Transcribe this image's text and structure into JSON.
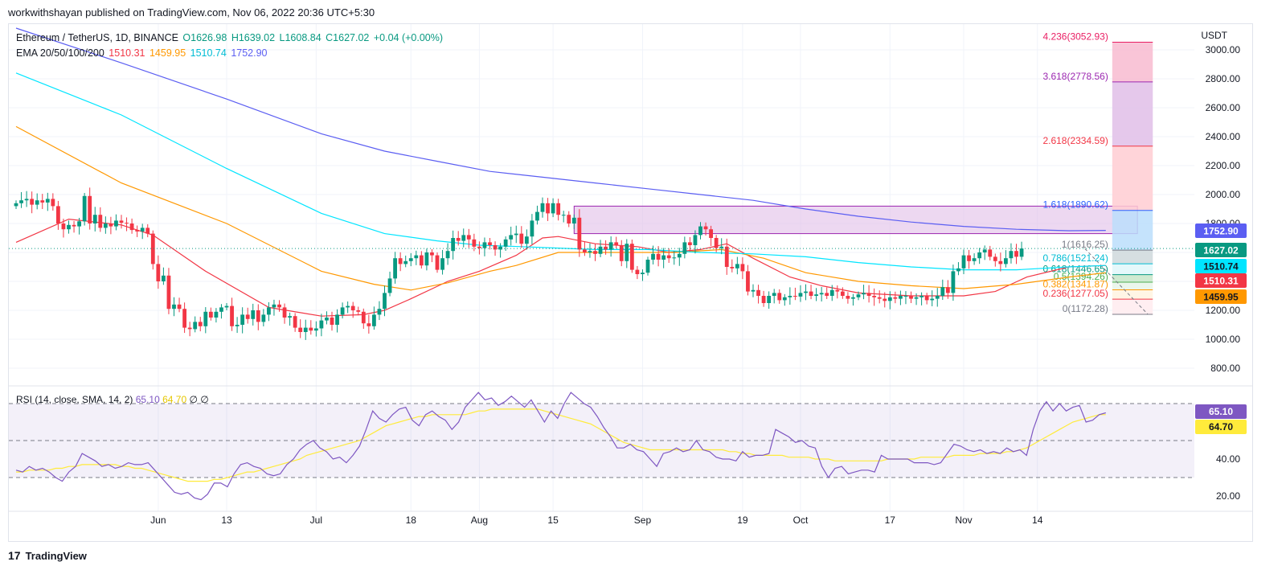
{
  "header": {
    "published_line": "workwithshayan published on TradingView.com, Nov 06, 2022 20:36 UTC+5:30"
  },
  "legend": {
    "symbol": "Ethereum / TetherUS, 1D, BINANCE",
    "open": "O1626.98",
    "high": "H1639.02",
    "low": "L1608.84",
    "close": "C1627.02",
    "change": "+0.04 (+0.00%)",
    "ema_title": "EMA 20/50/100/200",
    "ema_values": [
      "1510.31",
      "1459.95",
      "1510.74",
      "1752.90"
    ]
  },
  "rsi_legend": {
    "title": "RSI (14, close, SMA, 14, 2)",
    "rsi": "65.10",
    "sma": "64.70",
    "extra": "∅ ∅"
  },
  "footer": {
    "brand": "TradingView",
    "logo_text": "17"
  },
  "colors": {
    "up": "#089981",
    "down": "#f23645",
    "ema20": "#f23645",
    "ema50": "#ff9800",
    "ema100": "#00e5ff",
    "ema200": "#5b5ef2",
    "rsi": "#7e57c2",
    "rsi_sma": "#ffeb3b"
  },
  "chart_data": [
    {
      "type": "candlestick",
      "title": "Ethereum / TetherUS, 1D, BINANCE",
      "ylabel": "USDT",
      "ylim": [
        700,
        3200
      ],
      "y_ticks": [
        800,
        1000,
        1200,
        1400,
        1600,
        1800,
        2000,
        2200,
        2400,
        2600,
        2800,
        3000
      ],
      "x_ticks": [
        "Jun",
        "13",
        "Jul",
        "18",
        "Aug",
        "15",
        "Sep",
        "19",
        "Oct",
        "17",
        "Nov",
        "14"
      ],
      "x_tick_days": [
        27,
        40,
        57,
        75,
        88,
        102,
        119,
        138,
        149,
        166,
        180,
        194
      ],
      "days_total": 207,
      "closes": [
        1940,
        1960,
        1970,
        1930,
        1960,
        1945,
        1970,
        1920,
        1800,
        1760,
        1790,
        1780,
        1815,
        1990,
        1800,
        1860,
        1770,
        1800,
        1780,
        1820,
        1805,
        1800,
        1755,
        1745,
        1770,
        1730,
        1520,
        1400,
        1440,
        1210,
        1240,
        1210,
        1080,
        1070,
        1120,
        1090,
        1190,
        1150,
        1190,
        1220,
        1230,
        1090,
        1100,
        1170,
        1140,
        1200,
        1120,
        1170,
        1220,
        1240,
        1220,
        1150,
        1160,
        1080,
        1050,
        1080,
        1060,
        1075,
        1130,
        1150,
        1100,
        1170,
        1220,
        1230,
        1200,
        1190,
        1110,
        1090,
        1170,
        1210,
        1320,
        1420,
        1560,
        1520,
        1540,
        1560,
        1580,
        1510,
        1600,
        1580,
        1480,
        1560,
        1610,
        1700,
        1680,
        1720,
        1690,
        1640,
        1630,
        1670,
        1650,
        1620,
        1640,
        1690,
        1720,
        1730,
        1660,
        1710,
        1820,
        1880,
        1940,
        1870,
        1940,
        1860,
        1860,
        1800,
        1840,
        1620,
        1600,
        1610,
        1590,
        1640,
        1620,
        1670,
        1650,
        1540,
        1660,
        1480,
        1450,
        1460,
        1550,
        1590,
        1550,
        1580,
        1560,
        1565,
        1590,
        1670,
        1650,
        1720,
        1780,
        1760,
        1700,
        1630,
        1640,
        1500,
        1490,
        1520,
        1470,
        1330,
        1340,
        1300,
        1250,
        1300,
        1320,
        1270,
        1290,
        1300,
        1295,
        1320,
        1330,
        1300,
        1310,
        1320,
        1300,
        1340,
        1330,
        1300,
        1280,
        1290,
        1310,
        1320,
        1300,
        1290,
        1280,
        1265,
        1290,
        1280,
        1300,
        1300,
        1280,
        1290,
        1300,
        1270,
        1280,
        1300,
        1360,
        1320,
        1470,
        1490,
        1580,
        1540,
        1560,
        1600,
        1620,
        1570,
        1540,
        1520,
        1560,
        1610,
        1570,
        1627
      ],
      "ema": [
        {
          "name": "EMA 20",
          "last": 1510.31,
          "anchors": [
            [
              0,
              1670
            ],
            [
              10,
              1830
            ],
            [
              20,
              1790
            ],
            [
              26,
              1720
            ],
            [
              36,
              1470
            ],
            [
              48,
              1220
            ],
            [
              58,
              1160
            ],
            [
              66,
              1170
            ],
            [
              70,
              1200
            ],
            [
              75,
              1280
            ],
            [
              82,
              1400
            ],
            [
              88,
              1470
            ],
            [
              95,
              1580
            ],
            [
              100,
              1700
            ],
            [
              103,
              1710
            ],
            [
              110,
              1660
            ],
            [
              118,
              1640
            ],
            [
              124,
              1600
            ],
            [
              130,
              1620
            ],
            [
              135,
              1660
            ],
            [
              140,
              1560
            ],
            [
              147,
              1430
            ],
            [
              153,
              1370
            ],
            [
              160,
              1320
            ],
            [
              170,
              1300
            ],
            [
              180,
              1300
            ],
            [
              186,
              1330
            ],
            [
              192,
              1430
            ],
            [
              200,
              1500
            ],
            [
              207,
              1510
            ]
          ]
        },
        {
          "name": "EMA 50",
          "last": 1459.95,
          "anchors": [
            [
              0,
              2470
            ],
            [
              20,
              2080
            ],
            [
              40,
              1800
            ],
            [
              58,
              1470
            ],
            [
              68,
              1380
            ],
            [
              75,
              1340
            ],
            [
              82,
              1390
            ],
            [
              90,
              1470
            ],
            [
              95,
              1510
            ],
            [
              103,
              1600
            ],
            [
              115,
              1600
            ],
            [
              125,
              1600
            ],
            [
              134,
              1620
            ],
            [
              142,
              1560
            ],
            [
              150,
              1460
            ],
            [
              160,
              1400
            ],
            [
              170,
              1370
            ],
            [
              180,
              1350
            ],
            [
              190,
              1380
            ],
            [
              200,
              1430
            ],
            [
              207,
              1460
            ]
          ]
        },
        {
          "name": "EMA 100",
          "last": 1510.74,
          "anchors": [
            [
              0,
              2840
            ],
            [
              20,
              2550
            ],
            [
              40,
              2180
            ],
            [
              58,
              1870
            ],
            [
              70,
              1730
            ],
            [
              80,
              1680
            ],
            [
              88,
              1650
            ],
            [
              96,
              1640
            ],
            [
              103,
              1630
            ],
            [
              110,
              1620
            ],
            [
              120,
              1620
            ],
            [
              130,
              1600
            ],
            [
              140,
              1590
            ],
            [
              150,
              1570
            ],
            [
              160,
              1530
            ],
            [
              170,
              1500
            ],
            [
              180,
              1480
            ],
            [
              190,
              1480
            ],
            [
              200,
              1500
            ],
            [
              207,
              1510
            ]
          ]
        },
        {
          "name": "EMA 200",
          "last": 1752.9,
          "anchors": [
            [
              0,
              3150
            ],
            [
              20,
              2910
            ],
            [
              40,
              2660
            ],
            [
              58,
              2420
            ],
            [
              70,
              2300
            ],
            [
              80,
              2230
            ],
            [
              90,
              2160
            ],
            [
              100,
              2120
            ],
            [
              110,
              2080
            ],
            [
              120,
              2040
            ],
            [
              130,
              2000
            ],
            [
              140,
              1960
            ],
            [
              150,
              1900
            ],
            [
              160,
              1850
            ],
            [
              170,
              1810
            ],
            [
              180,
              1780
            ],
            [
              190,
              1760
            ],
            [
              200,
              1750
            ],
            [
              207,
              1752
            ]
          ]
        }
      ],
      "price_labels": [
        "1752.90",
        "1627.02",
        "1510.74",
        "1510.31",
        "1459.95"
      ],
      "price_label_values": [
        1752.9,
        1627.02,
        1510.74,
        1510.31,
        1459.95
      ],
      "resistance_zone": [
        1730,
        1920
      ],
      "fib": {
        "day_start": 207,
        "day_end": 215,
        "levels": [
          {
            "label": "4.236(3052.93)",
            "value": 3052.93
          },
          {
            "label": "3.618(2778.56)",
            "value": 2778.56
          },
          {
            "label": "2.618(2334.59)",
            "value": 2334.59
          },
          {
            "label": "1.618(1890.62)",
            "value": 1890.62
          },
          {
            "label": "1(1616.25)",
            "value": 1616.25
          },
          {
            "label": "0.786(1521.24)",
            "value": 1521.24
          },
          {
            "label": "0.618(1446.65)",
            "value": 1446.65
          },
          {
            "label": "0.5(1394.26)",
            "value": 1394.26
          },
          {
            "label": "0.382(1341.87)",
            "value": 1341.87
          },
          {
            "label": "0.236(1277.05)",
            "value": 1277.05
          },
          {
            "label": "0(1172.28)",
            "value": 1172.28
          }
        ]
      }
    },
    {
      "type": "line",
      "title": "RSI (14, close, SMA, 14, 2)",
      "ylim": [
        10,
        80
      ],
      "y_ticks": [
        20,
        40
      ],
      "bands": [
        30,
        50,
        70
      ],
      "rsi": [
        34,
        33,
        36,
        34,
        35,
        33,
        30,
        28,
        33,
        36,
        43,
        41,
        39,
        36,
        37,
        35,
        36,
        38,
        37,
        37,
        38,
        34,
        30,
        26,
        22,
        21,
        22,
        19,
        18,
        21,
        27,
        27,
        25,
        32,
        37,
        38,
        36,
        35,
        32,
        31,
        32,
        37,
        40,
        45,
        48,
        50,
        46,
        44,
        40,
        41,
        38,
        42,
        47,
        56,
        66,
        62,
        60,
        64,
        67,
        68,
        61,
        58,
        64,
        66,
        63,
        61,
        56,
        60,
        68,
        72,
        76,
        72,
        73,
        69,
        71,
        74,
        71,
        68,
        72,
        66,
        60,
        66,
        62,
        70,
        76,
        73,
        70,
        68,
        63,
        57,
        52,
        46,
        46,
        48,
        45,
        44,
        40,
        36,
        43,
        44,
        46,
        44,
        45,
        50,
        45,
        44,
        41,
        40,
        40,
        39,
        44,
        41,
        42,
        42,
        43,
        56,
        54,
        52,
        49,
        50,
        47,
        46,
        36,
        30,
        35,
        36,
        32,
        33,
        34,
        34,
        33,
        42,
        40,
        40,
        40,
        40,
        38,
        38,
        38,
        37,
        38,
        43,
        48,
        47,
        45,
        44,
        45,
        43,
        44,
        43,
        46,
        44,
        45,
        42,
        56,
        66,
        71,
        66,
        70,
        66,
        68,
        69,
        60,
        61,
        64,
        65
      ],
      "rsi_sma": [
        33,
        33,
        34,
        34,
        34,
        34,
        35,
        35,
        36,
        36,
        37,
        37,
        37,
        37,
        37,
        37,
        36,
        36,
        35,
        35,
        34,
        33,
        32,
        31,
        30,
        29,
        28,
        28,
        28,
        28,
        29,
        29,
        30,
        31,
        32,
        33,
        33,
        34,
        35,
        36,
        37,
        38,
        39,
        40,
        42,
        43,
        44,
        45,
        46,
        47,
        48,
        49,
        50,
        52,
        54,
        56,
        58,
        59,
        60,
        61,
        62,
        63,
        63,
        64,
        64,
        64,
        64,
        64,
        64,
        65,
        66,
        66,
        67,
        67,
        67,
        67,
        67,
        67,
        67,
        67,
        66,
        65,
        64,
        63,
        62,
        61,
        60,
        59,
        57,
        55,
        53,
        51,
        49,
        48,
        47,
        46,
        45,
        45,
        45,
        45,
        45,
        45,
        45,
        45,
        45,
        45,
        45,
        45,
        44,
        44,
        43,
        43,
        42,
        42,
        42,
        42,
        42,
        41,
        41,
        41,
        41,
        40,
        40,
        40,
        39,
        39,
        39,
        39,
        39,
        39,
        39,
        39,
        40,
        40,
        40,
        40,
        40,
        41,
        41,
        41,
        41,
        41,
        42,
        42,
        42,
        42,
        43,
        43,
        43,
        43,
        44,
        44,
        45,
        46,
        48,
        50,
        52,
        54,
        56,
        58,
        60,
        61,
        62,
        63,
        64,
        64
      ],
      "last_rsi": "65.10",
      "last_sma": "64.70",
      "days_total": 207
    }
  ]
}
